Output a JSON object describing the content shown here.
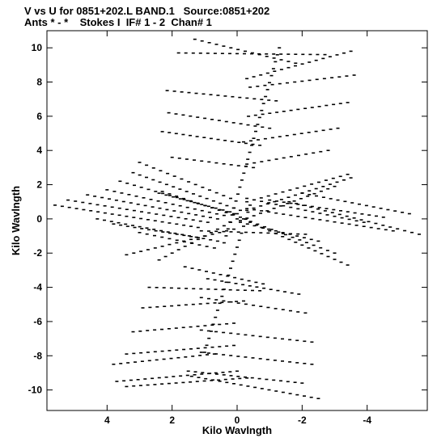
{
  "header": {
    "line1": "V vs U for 0851+202.L BAND.1   Source:0851+202",
    "line2": "Ants * - *    Stokes I  IF# 1 - 2  Chan# 1"
  },
  "chart_data": {
    "type": "scatter",
    "title": "V vs U for 0851+202.L BAND.1   Source:0851+202",
    "subtitle": "Ants * - *    Stokes I  IF# 1 - 2  Chan# 1",
    "xlabel": "Kilo Wavlngth",
    "ylabel": "Kilo Wavlngth",
    "xlim": [
      5.85,
      -5.85
    ],
    "ylim": [
      -11.2,
      11.0
    ],
    "x_reversed": true,
    "xticks": [
      4,
      2,
      0,
      -2,
      -4
    ],
    "xtick_labels": [
      "4",
      "2",
      "0",
      "-2",
      "-4"
    ],
    "yticks": [
      10,
      8,
      6,
      4,
      2,
      0,
      -2,
      -4,
      -6,
      -8,
      -10
    ],
    "ytick_labels": [
      "10",
      "8",
      "6",
      "4",
      "2",
      "0",
      "-2",
      "-4",
      "-6",
      "-8",
      "-10"
    ],
    "grid": false,
    "note_tracks": "approximate uv-coverage tracks read from figure, each track: start [u,v] to end [u,v]",
    "tracks": [
      {
        "from": [
          1.3,
          10.5
        ],
        "to": [
          -1.8,
          9.1
        ]
      },
      {
        "from": [
          1.8,
          9.7
        ],
        "to": [
          -2.7,
          9.6
        ]
      },
      {
        "from": [
          -0.3,
          8.2
        ],
        "to": [
          -3.5,
          9.8
        ]
      },
      {
        "from": [
          2.15,
          7.5
        ],
        "to": [
          -1.2,
          6.9
        ]
      },
      {
        "from": [
          -0.4,
          7.7
        ],
        "to": [
          -3.6,
          8.4
        ]
      },
      {
        "from": [
          2.1,
          6.2
        ],
        "to": [
          -1.0,
          5.3
        ]
      },
      {
        "from": [
          -0.35,
          6.0
        ],
        "to": [
          -3.4,
          6.8
        ]
      },
      {
        "from": [
          2.3,
          5.1
        ],
        "to": [
          -0.7,
          4.3
        ]
      },
      {
        "from": [
          -0.2,
          4.5
        ],
        "to": [
          -3.1,
          5.3
        ]
      },
      {
        "from": [
          2.0,
          3.6
        ],
        "to": [
          -0.5,
          3.0
        ]
      },
      {
        "from": [
          -0.3,
          3.2
        ],
        "to": [
          -2.8,
          4.0
        ]
      },
      {
        "from": [
          0.4,
          -1.4
        ],
        "to": [
          -1.3,
          10.0
        ]
      },
      {
        "from": [
          3.0,
          3.3
        ],
        "to": [
          0.2,
          1.2
        ]
      },
      {
        "from": [
          3.2,
          2.7
        ],
        "to": [
          -0.1,
          0.5
        ]
      },
      {
        "from": [
          3.6,
          2.2
        ],
        "to": [
          0.1,
          0.3
        ]
      },
      {
        "from": [
          4.0,
          1.7
        ],
        "to": [
          0.4,
          0.2
        ]
      },
      {
        "from": [
          4.6,
          1.4
        ],
        "to": [
          0.6,
          0.0
        ]
      },
      {
        "from": [
          5.2,
          1.1
        ],
        "to": [
          0.9,
          -0.2
        ]
      },
      {
        "from": [
          5.6,
          0.8
        ],
        "to": [
          1.2,
          -0.5
        ]
      },
      {
        "from": [
          4.3,
          0.0
        ],
        "to": [
          0.6,
          -1.3
        ]
      },
      {
        "from": [
          3.8,
          -0.3
        ],
        "to": [
          1.2,
          -1.1
        ]
      },
      {
        "from": [
          3.0,
          -0.8
        ],
        "to": [
          0.7,
          -1.7
        ]
      },
      {
        "from": [
          2.3,
          1.6
        ],
        "to": [
          -0.1,
          0.1
        ]
      },
      {
        "from": [
          2.4,
          1.5
        ],
        "to": [
          0.0,
          0.3
        ]
      },
      {
        "from": [
          3.4,
          -2.1
        ],
        "to": [
          0.1,
          -0.6
        ]
      },
      {
        "from": [
          -0.1,
          -0.2
        ],
        "to": [
          -2.5,
          -1.3
        ]
      },
      {
        "from": [
          -0.2,
          0.0
        ],
        "to": [
          -3.0,
          -2.0
        ]
      },
      {
        "from": [
          -0.4,
          -0.2
        ],
        "to": [
          -3.4,
          -2.7
        ]
      },
      {
        "from": [
          -2.0,
          1.5
        ],
        "to": [
          -5.3,
          0.3
        ]
      },
      {
        "from": [
          -1.6,
          1.0
        ],
        "to": [
          -5.6,
          -0.9
        ]
      },
      {
        "from": [
          -0.3,
          0.6
        ],
        "to": [
          -4.8,
          -0.7
        ]
      },
      {
        "from": [
          -0.3,
          1.2
        ],
        "to": [
          -3.9,
          -0.2
        ]
      },
      {
        "from": [
          -1.0,
          1.1
        ],
        "to": [
          -4.5,
          0.1
        ]
      },
      {
        "from": [
          -0.3,
          1.0
        ],
        "to": [
          -3.4,
          2.6
        ]
      },
      {
        "from": [
          -0.3,
          0.5
        ],
        "to": [
          -3.5,
          2.4
        ]
      },
      {
        "from": [
          -0.1,
          -0.1
        ],
        "to": [
          -3.0,
          1.9
        ]
      },
      {
        "from": [
          2.4,
          -2.4
        ],
        "to": [
          0.0,
          0.0
        ]
      },
      {
        "from": [
          1.1,
          -0.7
        ],
        "to": [
          -2.1,
          -0.9
        ]
      },
      {
        "from": [
          -0.4,
          0.8
        ],
        "to": [
          1.0,
          -7.8
        ]
      },
      {
        "from": [
          1.6,
          -2.8
        ],
        "to": [
          -0.8,
          -3.8
        ]
      },
      {
        "from": [
          2.7,
          -4.0
        ],
        "to": [
          -0.7,
          -4.2
        ]
      },
      {
        "from": [
          0.9,
          -3.5
        ],
        "to": [
          -1.9,
          -4.4
        ]
      },
      {
        "from": [
          2.9,
          -5.2
        ],
        "to": [
          -0.2,
          -4.8
        ]
      },
      {
        "from": [
          1.1,
          -4.6
        ],
        "to": [
          -2.1,
          -5.5
        ]
      },
      {
        "from": [
          3.2,
          -6.6
        ],
        "to": [
          0.1,
          -6.1
        ]
      },
      {
        "from": [
          1.1,
          -6.5
        ],
        "to": [
          -2.3,
          -7.2
        ]
      },
      {
        "from": [
          3.4,
          -7.9
        ],
        "to": [
          0.1,
          -7.4
        ]
      },
      {
        "from": [
          1.1,
          -7.8
        ],
        "to": [
          -2.3,
          -8.5
        ]
      },
      {
        "from": [
          3.8,
          -8.5
        ],
        "to": [
          0.7,
          -7.9
        ]
      },
      {
        "from": [
          1.5,
          -8.9
        ],
        "to": [
          -2.0,
          -9.6
        ]
      },
      {
        "from": [
          3.7,
          -9.5
        ],
        "to": [
          0.0,
          -8.9
        ]
      },
      {
        "from": [
          3.4,
          -9.8
        ],
        "to": [
          -0.3,
          -9.3
        ]
      },
      {
        "from": [
          1.4,
          -9.2
        ],
        "to": [
          -2.5,
          -10.5
        ]
      }
    ]
  }
}
